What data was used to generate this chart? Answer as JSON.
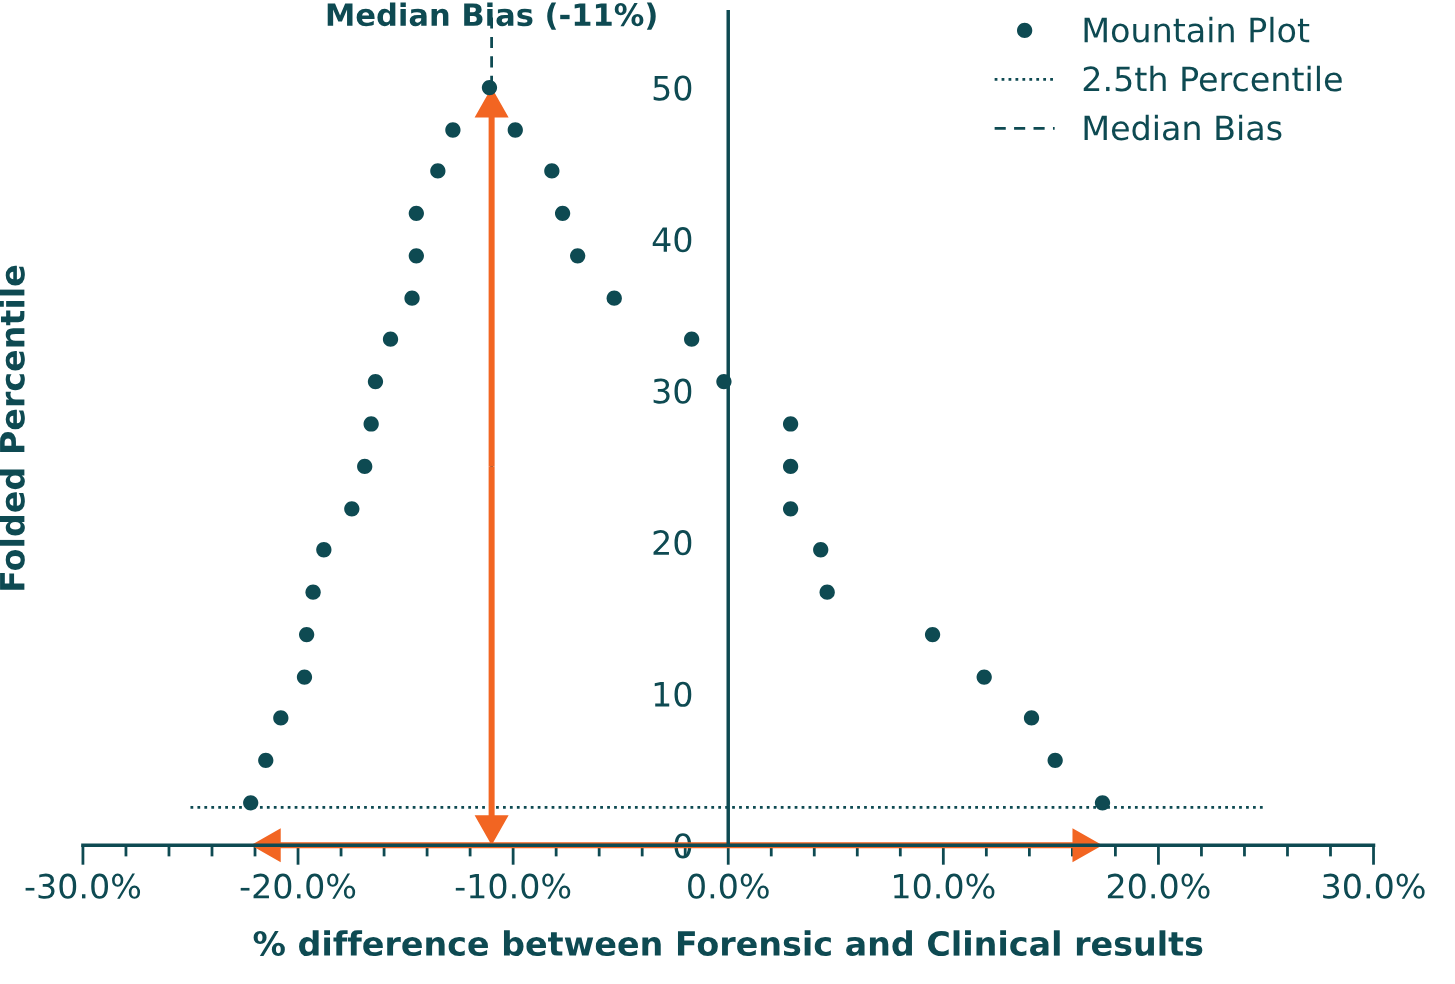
{
  "chart_data": {
    "type": "scatter",
    "xlabel": "% difference between Forensic and Clinical results",
    "ylabel": "Folded Percentile",
    "xlim": [
      -30,
      30
    ],
    "ylim": [
      0,
      55
    ],
    "xticks": [
      {
        "value": -30,
        "label": "-30.0%"
      },
      {
        "value": -28,
        "label": null
      },
      {
        "value": -26,
        "label": null
      },
      {
        "value": -24,
        "label": null
      },
      {
        "value": -22,
        "label": null
      },
      {
        "value": -20,
        "label": "-20.0%"
      },
      {
        "value": -18,
        "label": null
      },
      {
        "value": -16,
        "label": null
      },
      {
        "value": -14,
        "label": null
      },
      {
        "value": -12,
        "label": null
      },
      {
        "value": -10,
        "label": "-10.0%"
      },
      {
        "value": -8,
        "label": null
      },
      {
        "value": -6,
        "label": null
      },
      {
        "value": -4,
        "label": null
      },
      {
        "value": -2,
        "label": null
      },
      {
        "value": 0,
        "label": "0.0%"
      },
      {
        "value": 2,
        "label": null
      },
      {
        "value": 4,
        "label": null
      },
      {
        "value": 6,
        "label": null
      },
      {
        "value": 8,
        "label": null
      },
      {
        "value": 10,
        "label": "10.0%"
      },
      {
        "value": 12,
        "label": null
      },
      {
        "value": 14,
        "label": null
      },
      {
        "value": 16,
        "label": null
      },
      {
        "value": 18,
        "label": null
      },
      {
        "value": 20,
        "label": "20.0%"
      },
      {
        "value": 22,
        "label": null
      },
      {
        "value": 24,
        "label": null
      },
      {
        "value": 26,
        "label": null
      },
      {
        "value": 28,
        "label": null
      },
      {
        "value": 30,
        "label": "30.0%"
      }
    ],
    "yticks": [
      0,
      10,
      20,
      30,
      40,
      50
    ],
    "series": [
      {
        "name": "Mountain Plot",
        "color": "#0e4a52",
        "x": [
          -22.2,
          -21.5,
          -20.8,
          -19.7,
          -19.6,
          -19.3,
          -18.8,
          -17.5,
          -16.9,
          -16.6,
          -16.4,
          -15.7,
          -14.7,
          -14.5,
          -14.5,
          -13.5,
          -12.8,
          -11.1,
          -9.9,
          -8.2,
          -7.7,
          -7.0,
          -5.3,
          -1.7,
          -0.2,
          2.9,
          2.9,
          2.9,
          4.3,
          4.6,
          9.5,
          11.9,
          14.1,
          15.2,
          17.4
        ],
        "values": [
          2.8,
          5.6,
          8.4,
          11.1,
          13.9,
          16.7,
          19.5,
          22.2,
          25.0,
          27.8,
          30.6,
          33.4,
          36.1,
          38.9,
          41.7,
          44.5,
          47.2,
          50.0,
          47.2,
          44.5,
          41.7,
          38.9,
          36.1,
          33.4,
          30.6,
          27.8,
          25.0,
          22.2,
          19.5,
          16.7,
          13.9,
          11.1,
          8.4,
          5.6,
          2.8
        ]
      }
    ],
    "ref_lines": [
      {
        "axis": "y",
        "value": 2.5,
        "label": "2.5th Percentile",
        "color": "#0e4a52",
        "line_style": "dotted"
      },
      {
        "axis": "x",
        "value": -11,
        "label": "Median Bias",
        "color": "#0e4a52",
        "line_style": "dashed"
      }
    ],
    "annotations": [
      {
        "text": "Median Bias (-11%)",
        "x": -11,
        "y": 55
      }
    ],
    "marker": "circle",
    "grid": false,
    "legend": "top right"
  }
}
